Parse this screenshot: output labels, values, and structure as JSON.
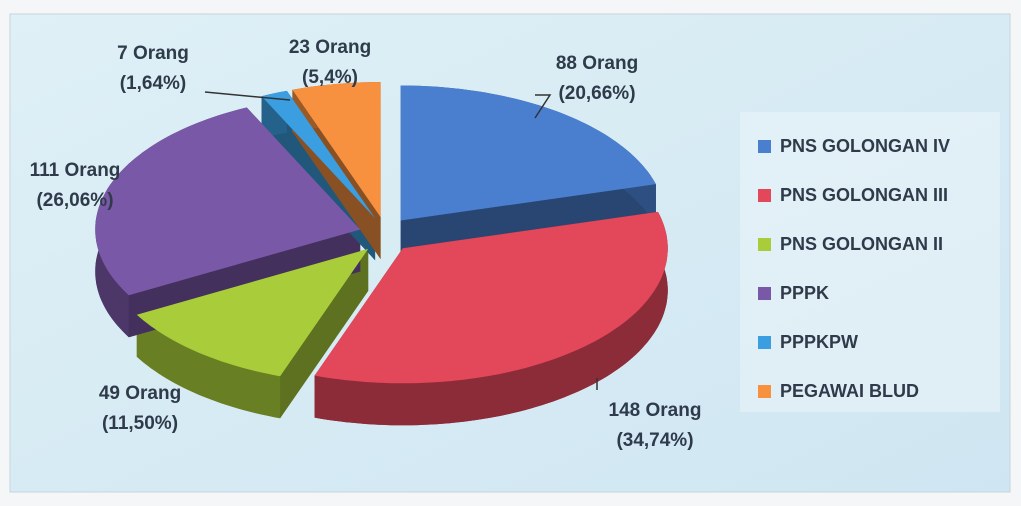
{
  "chart_data": {
    "type": "pie",
    "categories": [
      "PNS GOLONGAN IV",
      "PNS GOLONGAN III",
      "PNS GOLONGAN II",
      "PPPK",
      "PPPKPW",
      "PEGAWAI BLUD"
    ],
    "values": [
      88,
      148,
      49,
      111,
      7,
      23
    ],
    "value_labels": [
      "88 Orang",
      "148 Orang",
      "49 Orang",
      "111 Orang",
      "7 Orang",
      "23 Orang"
    ],
    "percentages": [
      20.66,
      34.74,
      11.5,
      26.06,
      1.64,
      5.4
    ],
    "percentage_labels": [
      "(20,66%)",
      "(34,74%)",
      "(11,50%)",
      "(26,06%)",
      "(1,64%)",
      "(5,4%)"
    ],
    "colors": [
      "#4a7fd0",
      "#e2475a",
      "#a9cd3a",
      "#7a58a8",
      "#3a9ee0",
      "#f7913f"
    ],
    "legend": "right"
  }
}
